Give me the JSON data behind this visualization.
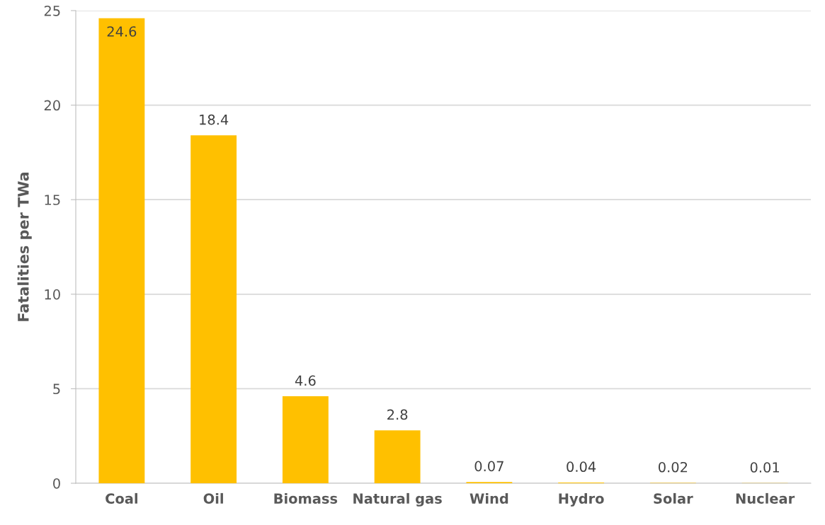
{
  "chart_data": {
    "type": "bar",
    "ylabel": "Fatalities per TWa",
    "categories": [
      "Coal",
      "Oil",
      "Biomass",
      "Natural gas",
      "Wind",
      "Hydro",
      "Solar",
      "Nuclear"
    ],
    "values": [
      24.6,
      18.4,
      4.6,
      2.8,
      0.07,
      0.04,
      0.02,
      0.01
    ],
    "color": "#ffc000",
    "ylim": [
      0,
      25
    ],
    "yticks": [
      0,
      5,
      10,
      15,
      20,
      25
    ],
    "grid": "y",
    "data_labels": true
  }
}
